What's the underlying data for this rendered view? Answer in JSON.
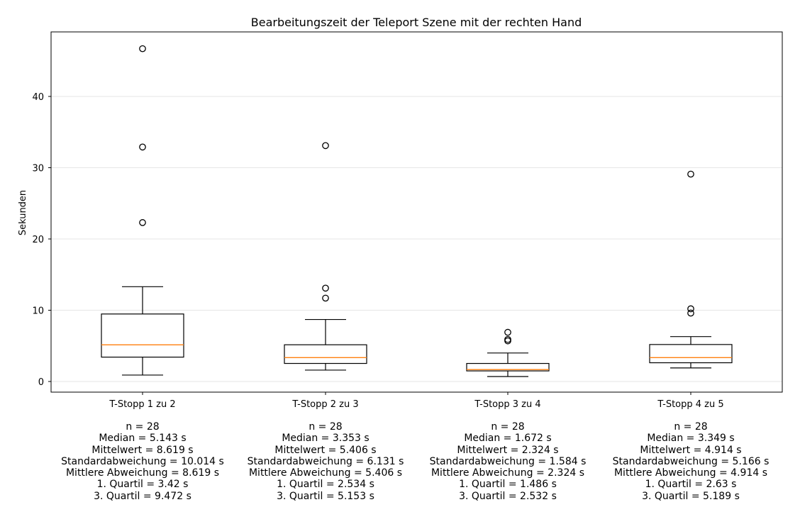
{
  "chart_data": {
    "type": "boxplot",
    "title": "Bearbeitungszeit der Teleport Szene mit der rechten Hand",
    "xlabel": "",
    "ylabel": "Sekunden",
    "ylim": [
      -1.5,
      49
    ],
    "yticks": [
      0,
      10,
      20,
      30,
      40
    ],
    "grid": "horizontal",
    "colors": {
      "median": "#ff7f0e",
      "box": "#000000",
      "grid": "#e6e6e6"
    },
    "categories": [
      "T-Stopp 1 zu 2",
      "T-Stopp 2 zu 3",
      "T-Stopp 3 zu 4",
      "T-Stopp 4 zu 5"
    ],
    "boxes": [
      {
        "category": "T-Stopp 1 zu 2",
        "whisker_low": 0.9,
        "q1": 3.42,
        "median": 5.143,
        "q3": 9.472,
        "whisker_high": 13.3,
        "outliers": [
          22.3,
          32.9,
          46.7
        ]
      },
      {
        "category": "T-Stopp 2 zu 3",
        "whisker_low": 1.6,
        "q1": 2.534,
        "median": 3.353,
        "q3": 5.153,
        "whisker_high": 8.7,
        "outliers": [
          11.7,
          13.1,
          33.1
        ]
      },
      {
        "category": "T-Stopp 3 zu 4",
        "whisker_low": 0.7,
        "q1": 1.486,
        "median": 1.672,
        "q3": 2.532,
        "whisker_high": 4.0,
        "outliers": [
          5.7,
          5.9,
          6.9
        ]
      },
      {
        "category": "T-Stopp 4 zu 5",
        "whisker_low": 1.9,
        "q1": 2.63,
        "median": 3.349,
        "q3": 5.189,
        "whisker_high": 6.3,
        "outliers": [
          9.6,
          10.2,
          29.1
        ]
      }
    ],
    "stats": [
      [
        "n = 28",
        "Median = 5.143 s",
        "Mittelwert = 8.619 s",
        "Standardabweichung = 10.014 s",
        "Mittlere Abweichung = 8.619 s",
        "1. Quartil = 3.42 s",
        "3. Quartil = 9.472 s"
      ],
      [
        "n = 28",
        "Median = 3.353 s",
        "Mittelwert = 5.406 s",
        "Standardabweichung = 6.131 s",
        "Mittlere Abweichung = 5.406 s",
        "1. Quartil = 2.534 s",
        "3. Quartil = 5.153 s"
      ],
      [
        "n = 28",
        "Median = 1.672 s",
        "Mittelwert = 2.324 s",
        "Standardabweichung = 1.584 s",
        "Mittlere Abweichung = 2.324 s",
        "1. Quartil = 1.486 s",
        "3. Quartil = 2.532 s"
      ],
      [
        "n = 28",
        "Median = 3.349 s",
        "Mittelwert = 4.914 s",
        "Standardabweichung = 5.166 s",
        "Mittlere Abweichung = 4.914 s",
        "1. Quartil = 2.63 s",
        "3. Quartil = 5.189 s"
      ]
    ]
  }
}
